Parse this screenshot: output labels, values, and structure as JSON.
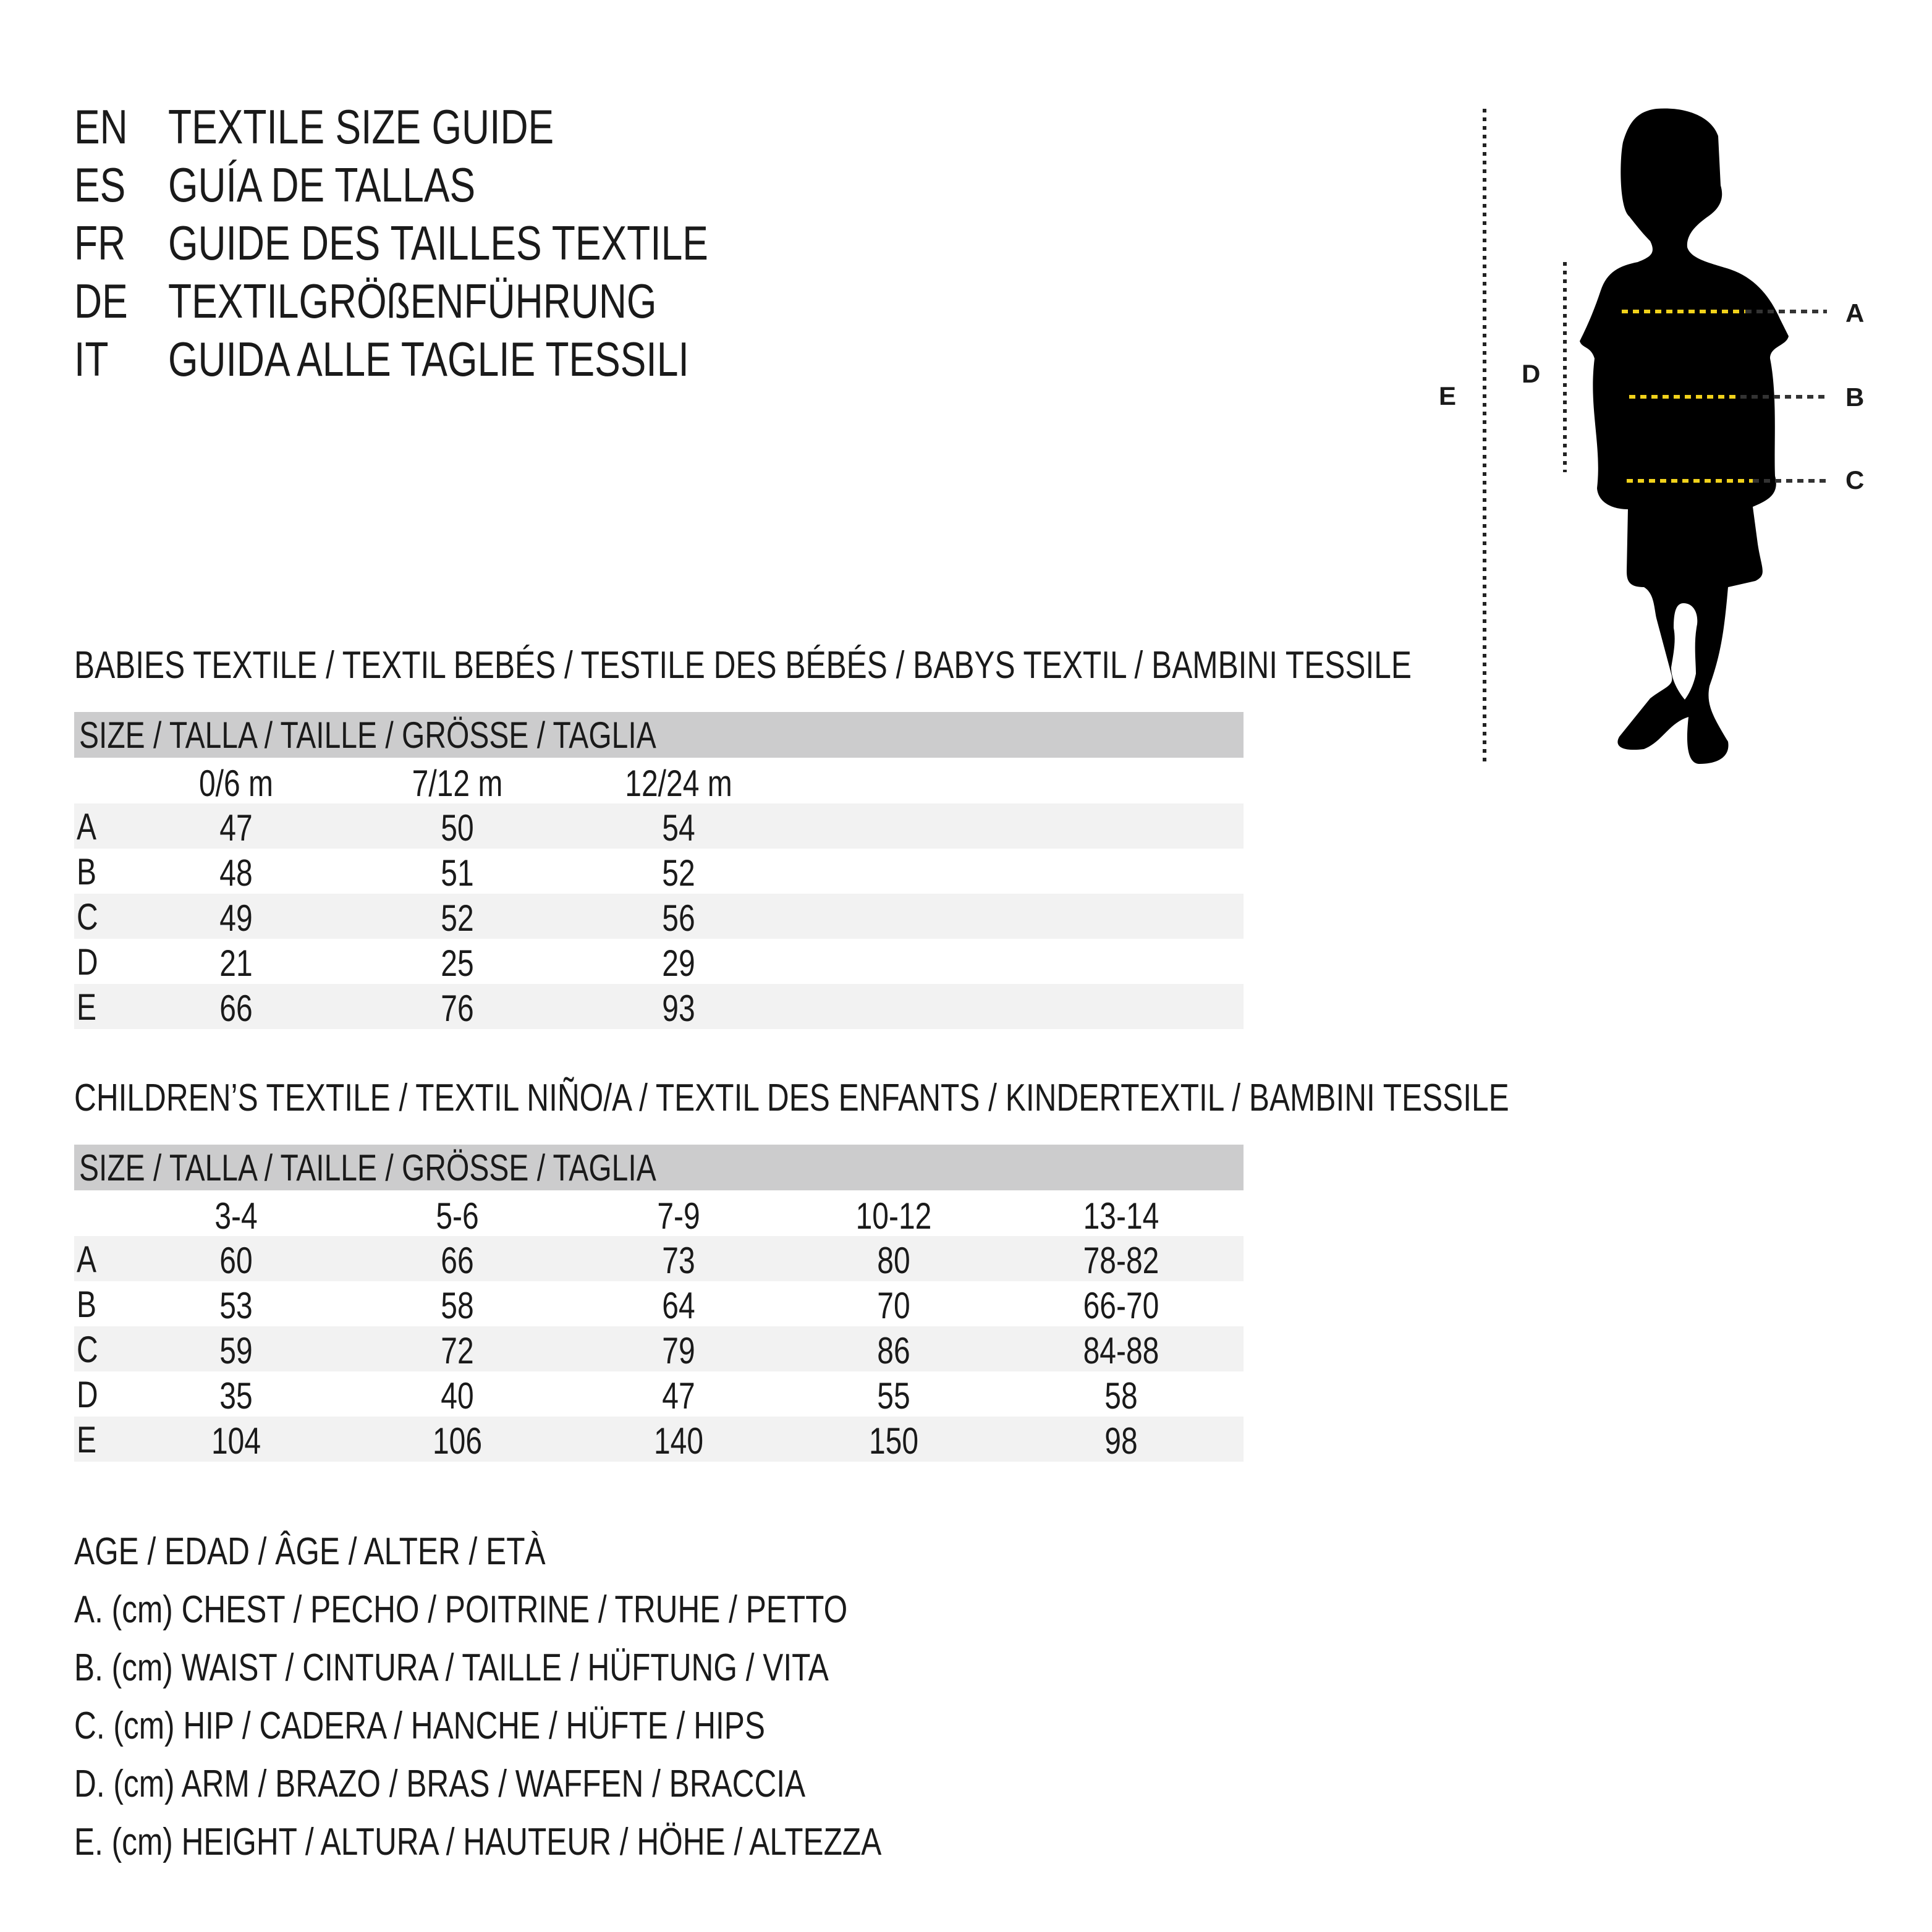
{
  "titles": [
    {
      "code": "EN",
      "text": "TEXTILE SIZE GUIDE"
    },
    {
      "code": "ES",
      "text": "GUÍA DE TALLAS"
    },
    {
      "code": "FR",
      "text": "GUIDE DES TAILLES TEXTILE"
    },
    {
      "code": "DE",
      "text": "TEXTILGRÖßENFÜHRUNG"
    },
    {
      "code": "IT",
      "text": "GUIDA ALLE TAGLIE TESSILI"
    }
  ],
  "figure": {
    "labels": {
      "A": "A",
      "B": "B",
      "C": "C",
      "D": "D",
      "E": "E"
    },
    "accent_color": "#f2d21b"
  },
  "babies": {
    "heading": "BABIES TEXTILE / TEXTIL BEBÉS / TESTILE DES BÉBÉS / BABYS TEXTIL / BAMBINI TESSILE",
    "size_header": "SIZE / TALLA / TAILLE / GRÖSSE / TAGLIA",
    "columns": [
      "0/6 m",
      "7/12 m",
      "12/24 m"
    ],
    "rows": [
      {
        "label": "A",
        "values": [
          "47",
          "50",
          "54"
        ]
      },
      {
        "label": "B",
        "values": [
          "48",
          "51",
          "52"
        ]
      },
      {
        "label": "C",
        "values": [
          "49",
          "52",
          "56"
        ]
      },
      {
        "label": "D",
        "values": [
          "21",
          "25",
          "29"
        ]
      },
      {
        "label": "E",
        "values": [
          "66",
          "76",
          "93"
        ]
      }
    ]
  },
  "children": {
    "heading": "CHILDREN’S TEXTILE / TEXTIL NIÑO/A / TEXTIL DES ENFANTS / KINDERTEXTIL / BAMBINI TESSILE",
    "size_header": "SIZE / TALLA / TAILLE / GRÖSSE / TAGLIA",
    "columns": [
      "3-4",
      "5-6",
      "7-9",
      "10-12",
      "13-14"
    ],
    "rows": [
      {
        "label": "A",
        "values": [
          "60",
          "66",
          "73",
          "80",
          "78-82"
        ]
      },
      {
        "label": "B",
        "values": [
          "53",
          "58",
          "64",
          "70",
          "66-70"
        ]
      },
      {
        "label": "C",
        "values": [
          "59",
          "72",
          "79",
          "86",
          "84-88"
        ]
      },
      {
        "label": "D",
        "values": [
          "35",
          "40",
          "47",
          "55",
          "58"
        ]
      },
      {
        "label": "E",
        "values": [
          "104",
          "106",
          "140",
          "150",
          "98"
        ]
      }
    ]
  },
  "legend": [
    "AGE / EDAD / ÂGE / ALTER / ETÀ",
    "A. (cm) CHEST / PECHO / POITRINE / TRUHE / PETTO",
    "B. (cm) WAIST / CINTURA / TAILLE / HÜFTUNG / VITA",
    "C. (cm) HIP / CADERA / HANCHE / HÜFTE / HIPS",
    "D. (cm) ARM / BRAZO / BRAS / WAFFEN / BRACCIA",
    "E. (cm) HEIGHT / ALTURA / HAUTEUR / HÖHE / ALTEZZA"
  ]
}
